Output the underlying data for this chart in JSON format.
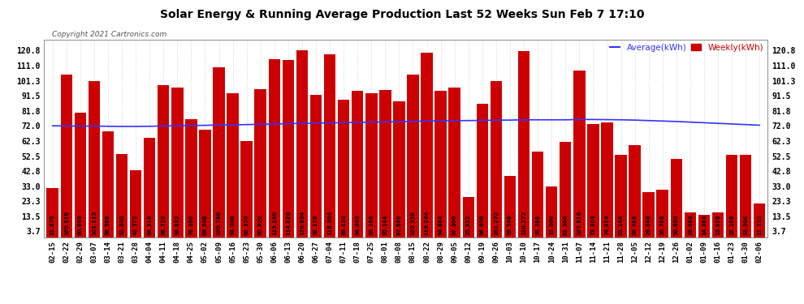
{
  "title": "Solar Energy & Running Average Production Last 52 Weeks Sun Feb 7 17:10",
  "copyright": "Copyright 2021 Cartronics.com",
  "legend_avg": "Average(kWh)",
  "legend_weekly": "Weekly(kWh)",
  "bar_color": "#cc0000",
  "avg_line_color": "#3333ff",
  "background_color": "#ffffff",
  "plot_bg_color": "#ffffff",
  "grid_color": "#aaaaaa",
  "yticks": [
    3.7,
    13.5,
    23.3,
    33.0,
    42.8,
    52.5,
    62.3,
    72.0,
    81.8,
    91.5,
    101.3,
    111.0,
    120.8
  ],
  "ylim_max": 128.0,
  "categories": [
    "02-15",
    "02-22",
    "02-29",
    "03-07",
    "03-14",
    "03-21",
    "03-28",
    "04-04",
    "04-11",
    "04-18",
    "04-25",
    "05-02",
    "05-09",
    "05-16",
    "05-23",
    "05-30",
    "06-06",
    "06-13",
    "06-20",
    "06-27",
    "07-04",
    "07-11",
    "07-18",
    "07-25",
    "08-01",
    "08-08",
    "08-15",
    "08-22",
    "08-29",
    "09-05",
    "09-12",
    "09-19",
    "09-26",
    "10-03",
    "10-10",
    "10-17",
    "10-24",
    "10-31",
    "11-07",
    "11-14",
    "11-21",
    "11-28",
    "12-05",
    "12-12",
    "12-19",
    "12-26",
    "01-02",
    "01-09",
    "01-16",
    "01-23",
    "01-30",
    "02-06"
  ],
  "weekly_values": [
    31.676,
    105.528,
    80.64,
    101.112,
    68.568,
    53.84,
    43.372,
    64.316,
    98.72,
    96.632,
    76.36,
    69.548,
    109.788,
    93.008,
    62.32,
    95.92,
    115.24,
    114.828,
    120.804,
    92.128,
    118.304,
    89.12,
    94.64,
    93.168,
    95.144,
    87.84,
    105.356,
    119.244,
    94.864,
    97.0,
    25.932,
    86.608,
    101.272,
    39.548,
    120.272,
    55.388,
    33.004,
    61.56,
    107.816,
    73.304,
    74.424,
    53.144,
    59.768,
    29.048,
    30.768,
    50.88,
    16.068,
    14.384,
    15.928,
    53.168,
    53.504,
    21.732
  ],
  "avg_values": [
    72.1,
    72.1,
    71.9,
    71.9,
    71.8,
    71.7,
    71.7,
    71.8,
    72.0,
    72.2,
    72.3,
    72.4,
    72.6,
    72.7,
    72.9,
    73.1,
    73.3,
    73.5,
    73.7,
    73.8,
    74.0,
    74.2,
    74.4,
    74.5,
    74.7,
    74.8,
    75.0,
    75.2,
    75.3,
    75.5,
    75.5,
    75.6,
    75.8,
    75.8,
    76.0,
    76.0,
    76.0,
    76.0,
    76.2,
    76.2,
    76.1,
    76.0,
    75.8,
    75.5,
    75.2,
    74.9,
    74.5,
    74.1,
    73.7,
    73.3,
    72.9,
    72.5
  ]
}
